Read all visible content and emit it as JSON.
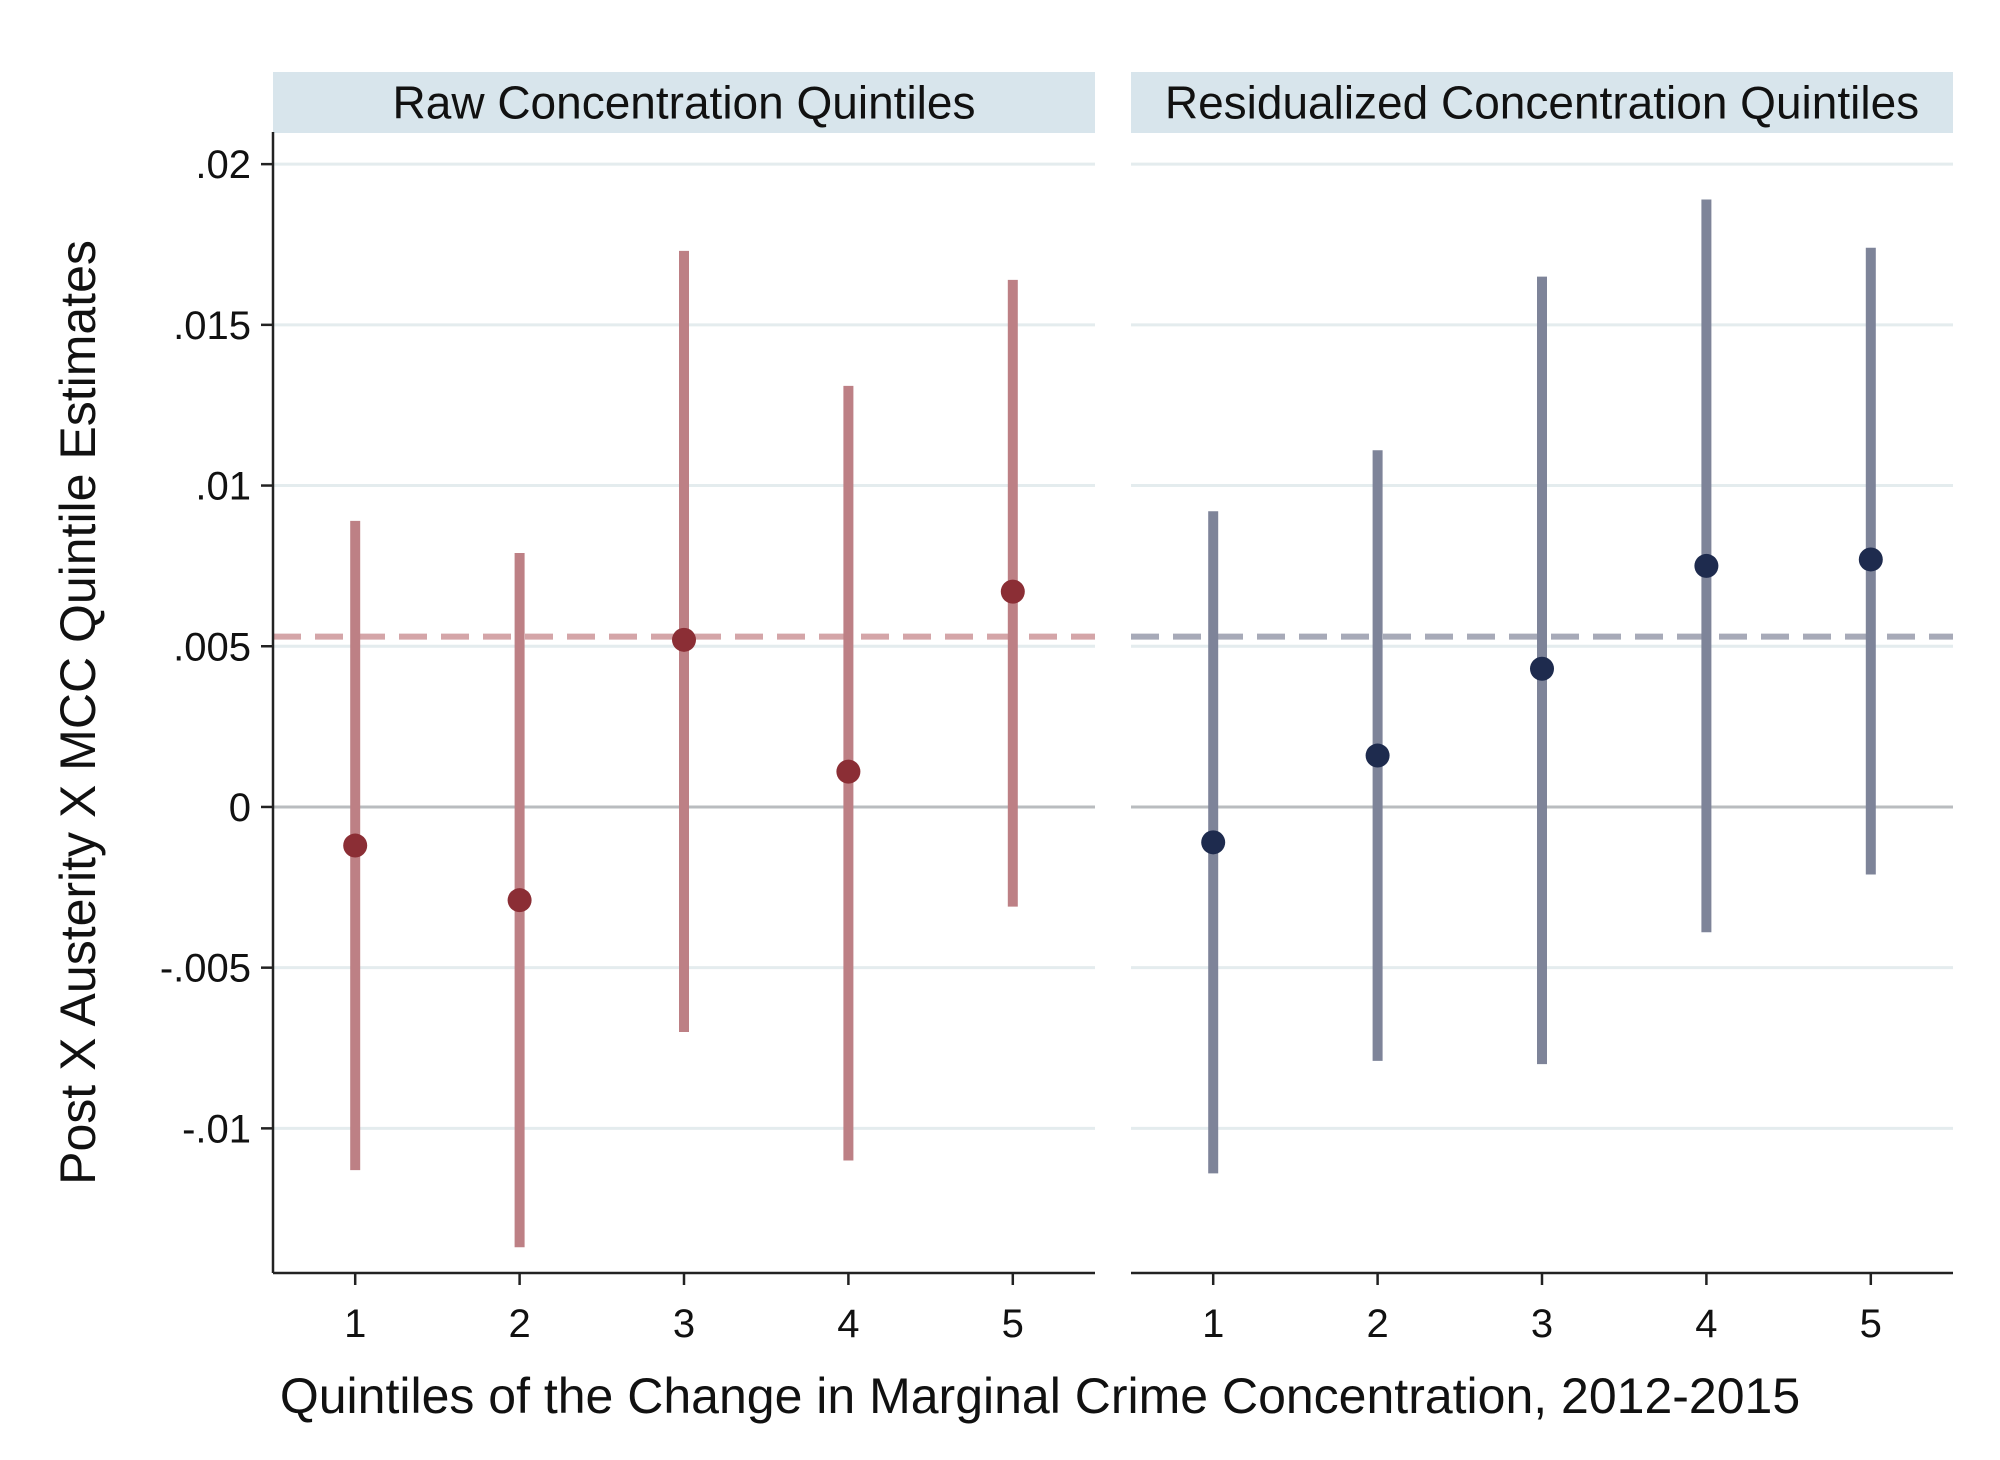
{
  "chart_data": {
    "type": "scatter",
    "variant": "coefficient plot with 95% confidence intervals",
    "ylabel": "Post X Austerity X MCC Quintile Estimates",
    "xlabel": "Quintiles of the Change in Marginal Crime Concentration, 2012-2015",
    "ylim": [
      -0.0145,
      0.021
    ],
    "yticks": [
      {
        "value": 0.02,
        "label": ".02"
      },
      {
        "value": 0.015,
        "label": ".015"
      },
      {
        "value": 0.01,
        "label": ".01"
      },
      {
        "value": 0.005,
        "label": ".005"
      },
      {
        "value": 0,
        "label": "0"
      },
      {
        "value": -0.005,
        "label": "-.005"
      },
      {
        "value": -0.01,
        "label": "-.01"
      }
    ],
    "xlim": [
      0.5,
      5.5
    ],
    "xticks": [
      {
        "value": 1,
        "label": "1"
      },
      {
        "value": 2,
        "label": "2"
      },
      {
        "value": 3,
        "label": "3"
      },
      {
        "value": 4,
        "label": "4"
      },
      {
        "value": 5,
        "label": "5"
      }
    ],
    "grid": true,
    "panels": [
      {
        "title": "Raw Concentration Quintiles",
        "point_color": "#8b2e35",
        "ci_color": "#bd8085",
        "ref_line_color": "#d4a5a8",
        "reference_line": 0.0053,
        "points": [
          {
            "x": 1,
            "estimate": -0.0012,
            "ci_low": -0.0113,
            "ci_high": 0.0089
          },
          {
            "x": 2,
            "estimate": -0.0029,
            "ci_low": -0.0137,
            "ci_high": 0.0079
          },
          {
            "x": 3,
            "estimate": 0.0052,
            "ci_low": -0.007,
            "ci_high": 0.0173
          },
          {
            "x": 4,
            "estimate": 0.0011,
            "ci_low": -0.011,
            "ci_high": 0.0131
          },
          {
            "x": 5,
            "estimate": 0.0067,
            "ci_low": -0.0031,
            "ci_high": 0.0164
          }
        ]
      },
      {
        "title": "Residualized Concentration Quintiles",
        "point_color": "#1e2b4e",
        "ci_color": "#7e8499",
        "ref_line_color": "#a7aab8",
        "reference_line": 0.0053,
        "points": [
          {
            "x": 1,
            "estimate": -0.0011,
            "ci_low": -0.0114,
            "ci_high": 0.0092
          },
          {
            "x": 2,
            "estimate": 0.0016,
            "ci_low": -0.0079,
            "ci_high": 0.0111
          },
          {
            "x": 3,
            "estimate": 0.0043,
            "ci_low": -0.008,
            "ci_high": 0.0165
          },
          {
            "x": 4,
            "estimate": 0.0075,
            "ci_low": -0.0039,
            "ci_high": 0.0189
          },
          {
            "x": 5,
            "estimate": 0.0077,
            "ci_low": -0.0021,
            "ci_high": 0.0174
          }
        ]
      }
    ],
    "colors": {
      "grid": "#e4ecee",
      "zero_line": "#b9bcbf",
      "header_bg": "#d8e5ec",
      "axis": "#222222"
    }
  }
}
